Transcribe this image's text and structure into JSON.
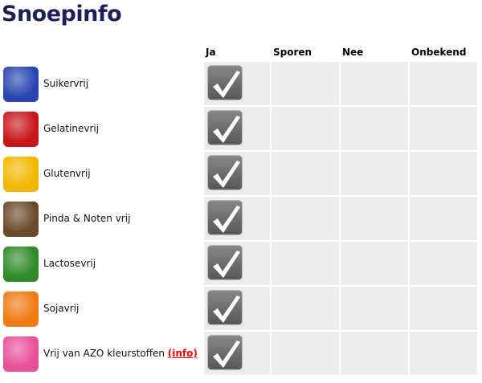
{
  "title": "Snoepinfo",
  "columns": [
    "Ja",
    "Sporen",
    "Nee",
    "Onbekend"
  ],
  "rows": [
    {
      "label": "Suikervrij",
      "icon": "sugar-cubes-icon",
      "color": "#2a45b0",
      "value": "Ja"
    },
    {
      "label": "Gelatinevrij",
      "icon": "jelly-icon",
      "color": "#c8161b",
      "value": "Ja"
    },
    {
      "label": "Glutenvrij",
      "icon": "wheat-icon",
      "color": "#f2b800",
      "value": "Ja"
    },
    {
      "label": "Pinda & Noten vrij",
      "icon": "peanut-icon",
      "color": "#6b4a2a",
      "value": "Ja"
    },
    {
      "label": "Lactosevrij",
      "icon": "cow-icon",
      "color": "#2f8a2a",
      "value": "Ja"
    },
    {
      "label": "Sojavrij",
      "icon": "soybean-icon",
      "color": "#f07a14",
      "value": "Ja"
    },
    {
      "label": "Vrij van AZO kleurstoffen",
      "link": "(info)",
      "icon": "flask-icon",
      "color": "#e8509a",
      "value": "Ja"
    }
  ]
}
